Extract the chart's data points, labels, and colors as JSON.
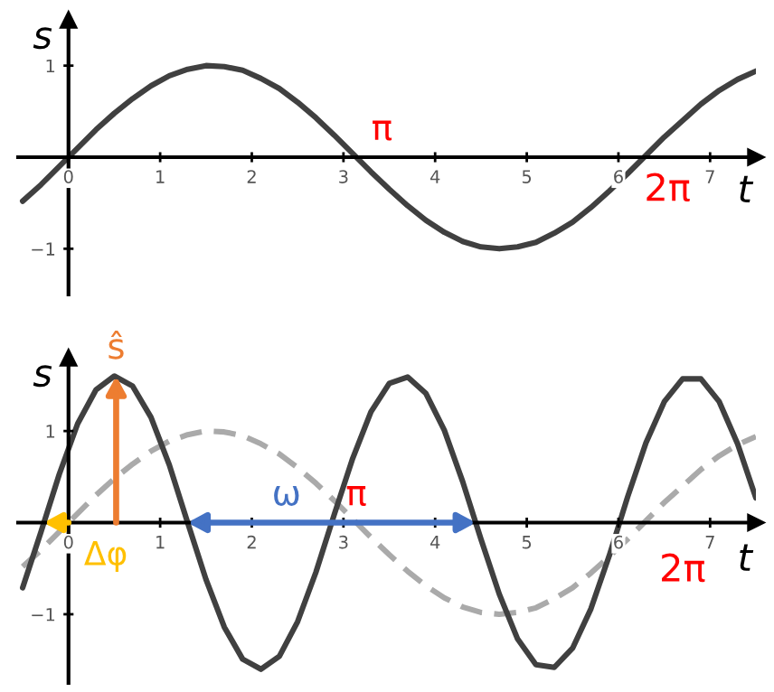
{
  "chart_data": [
    {
      "type": "line",
      "xlabel": "t",
      "ylabel": "s",
      "xlim": [
        -0.55,
        7.5
      ],
      "ylim": [
        -1.5,
        1.5
      ],
      "xticks": [
        0,
        1,
        2,
        3,
        4,
        5,
        6,
        7
      ],
      "yticks": [
        -1,
        1
      ],
      "grid": false,
      "legend": false,
      "annotations": [
        {
          "text": "π",
          "x": 3.14,
          "y": 0
        },
        {
          "text": "2π",
          "x": 6.28,
          "y": 0
        }
      ],
      "series": [
        {
          "color": "#404040",
          "line_style": "solid",
          "x": [
            -0.5,
            -0.3,
            -0.1,
            0.1,
            0.3,
            0.5,
            0.7,
            0.9,
            1.1,
            1.3,
            1.5,
            1.7,
            1.9,
            2.1,
            2.3,
            2.5,
            2.7,
            2.9,
            3.1,
            3.3,
            3.5,
            3.7,
            3.9,
            4.1,
            4.3,
            4.5,
            4.7,
            4.9,
            5.1,
            5.3,
            5.5,
            5.7,
            5.9,
            6.1,
            6.3,
            6.5,
            6.7,
            6.9,
            7.1,
            7.3,
            7.5
          ],
          "values": [
            -0.48,
            -0.3,
            -0.1,
            0.1,
            0.3,
            0.48,
            0.64,
            0.78,
            0.89,
            0.96,
            1.0,
            0.99,
            0.95,
            0.86,
            0.75,
            0.6,
            0.43,
            0.24,
            0.04,
            -0.16,
            -0.35,
            -0.53,
            -0.69,
            -0.82,
            -0.92,
            -0.98,
            -1.0,
            -0.98,
            -0.93,
            -0.83,
            -0.71,
            -0.55,
            -0.37,
            -0.18,
            0.02,
            0.22,
            0.4,
            0.58,
            0.73,
            0.85,
            0.94
          ]
        }
      ]
    },
    {
      "type": "line",
      "xlabel": "t",
      "ylabel": "s",
      "xlim": [
        -0.55,
        7.5
      ],
      "ylim": [
        -1.75,
        1.8
      ],
      "xticks": [
        0,
        1,
        2,
        3,
        4,
        5,
        6,
        7
      ],
      "yticks": [
        -1,
        1
      ],
      "grid": false,
      "legend": false,
      "annotations": [
        {
          "text": "ŝ",
          "x": 0.52,
          "y": 1.6
        },
        {
          "text": "Δφ",
          "x": -0.27,
          "y": 0
        },
        "ω",
        {
          "text": "π",
          "x": 3.14,
          "y": 0
        },
        {
          "text": "2π",
          "x": 6.28,
          "y": 0
        }
      ],
      "series": [
        {
          "color": "#aaaaaa",
          "line_style": "dashed",
          "x": [
            -0.5,
            -0.3,
            -0.1,
            0.1,
            0.3,
            0.5,
            0.7,
            0.9,
            1.1,
            1.3,
            1.5,
            1.7,
            1.9,
            2.1,
            2.3,
            2.5,
            2.7,
            2.9,
            3.1,
            3.3,
            3.5,
            3.7,
            3.9,
            4.1,
            4.3,
            4.5,
            4.7,
            4.9,
            5.1,
            5.3,
            5.5,
            5.7,
            5.9,
            6.1,
            6.3,
            6.5,
            6.7,
            6.9,
            7.1,
            7.3,
            7.5
          ],
          "values": [
            -0.48,
            -0.3,
            -0.1,
            0.1,
            0.3,
            0.48,
            0.64,
            0.78,
            0.89,
            0.96,
            1.0,
            0.99,
            0.95,
            0.86,
            0.75,
            0.6,
            0.43,
            0.24,
            0.04,
            -0.16,
            -0.35,
            -0.53,
            -0.69,
            -0.82,
            -0.92,
            -0.98,
            -1.0,
            -0.98,
            -0.93,
            -0.83,
            -0.71,
            -0.55,
            -0.37,
            -0.18,
            0.02,
            0.22,
            0.4,
            0.58,
            0.73,
            0.85,
            0.94
          ]
        },
        {
          "color": "#404040",
          "line_style": "solid",
          "x": [
            -0.5,
            -0.3,
            -0.1,
            0.1,
            0.3,
            0.5,
            0.7,
            0.9,
            1.1,
            1.3,
            1.5,
            1.7,
            1.9,
            2.1,
            2.3,
            2.5,
            2.7,
            2.9,
            3.1,
            3.3,
            3.5,
            3.7,
            3.9,
            4.1,
            4.3,
            4.5,
            4.7,
            4.9,
            5.1,
            5.3,
            5.5,
            5.7,
            5.9,
            6.1,
            6.3,
            6.5,
            6.7,
            6.9,
            7.1,
            7.3,
            7.5
          ],
          "values": [
            -0.71,
            -0.1,
            0.53,
            1.08,
            1.45,
            1.6,
            1.49,
            1.15,
            0.63,
            0.0,
            -0.62,
            -1.14,
            -1.49,
            -1.6,
            -1.46,
            -1.08,
            -0.54,
            0.09,
            0.7,
            1.21,
            1.52,
            1.59,
            1.41,
            1.01,
            0.45,
            -0.18,
            -0.78,
            -1.27,
            -1.55,
            -1.58,
            -1.37,
            -0.94,
            -0.36,
            0.28,
            0.87,
            1.32,
            1.57,
            1.57,
            1.32,
            0.86,
            0.27
          ]
        }
      ]
    }
  ]
}
